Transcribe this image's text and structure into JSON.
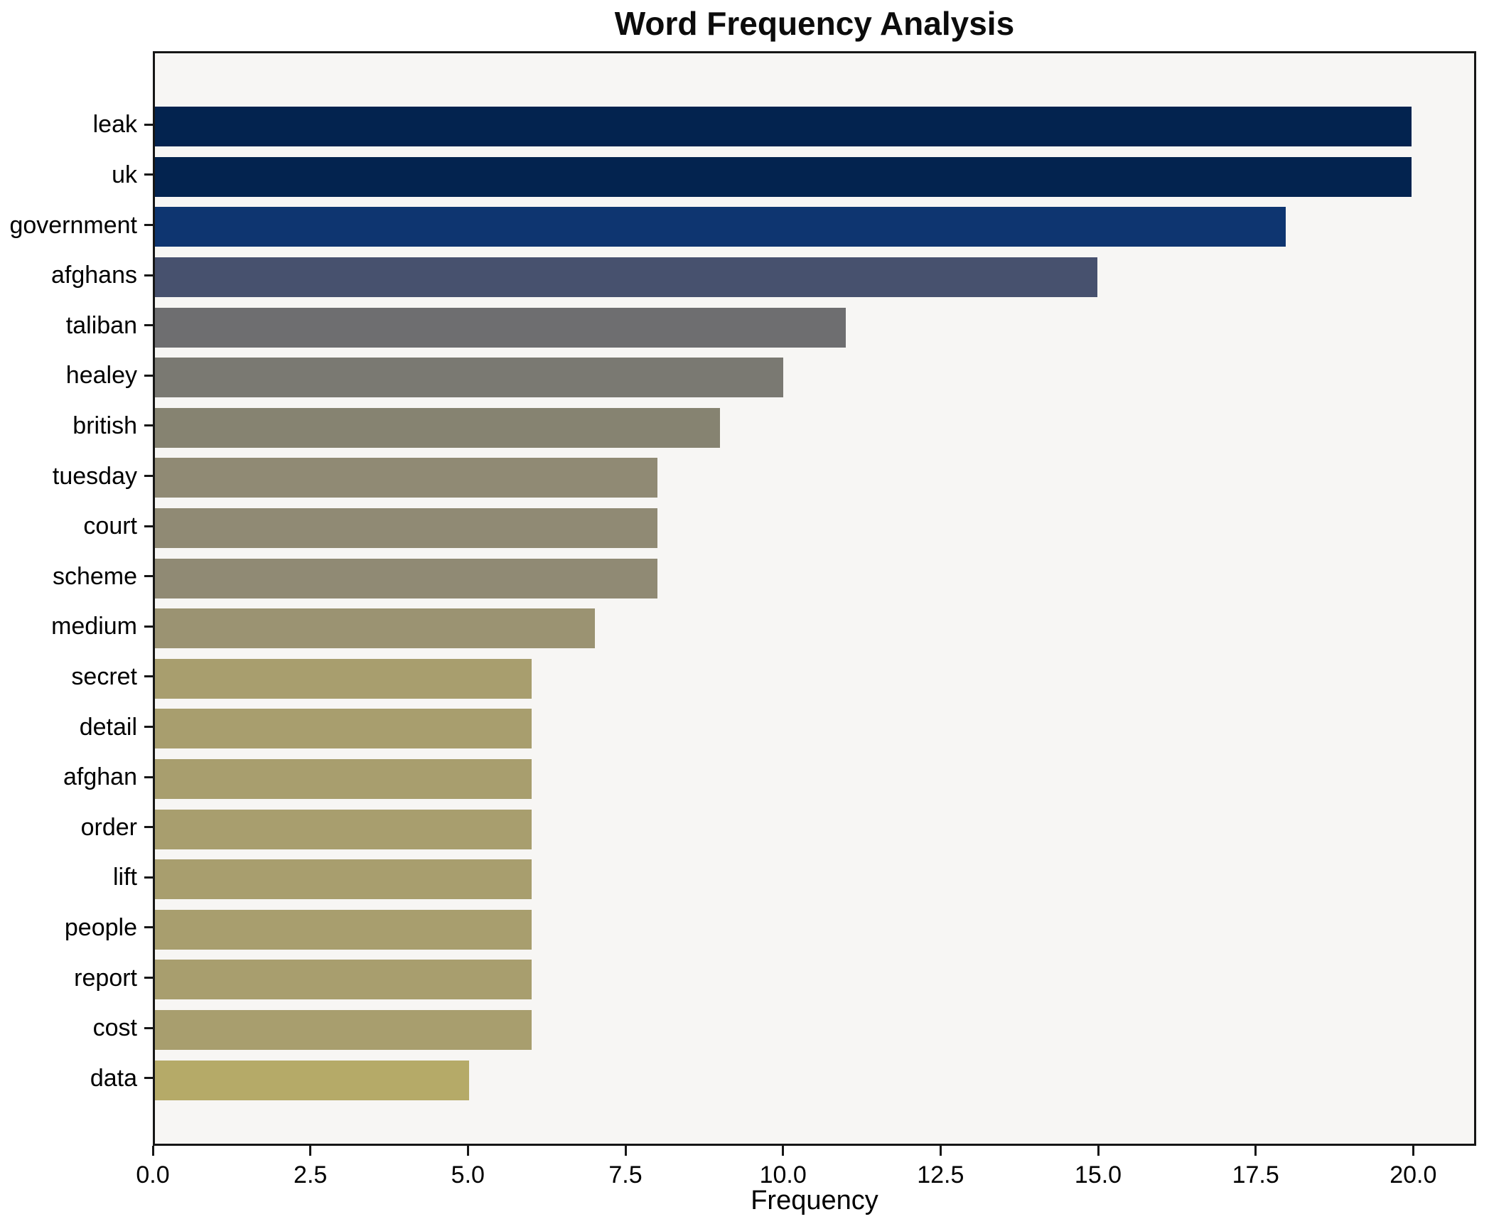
{
  "chart_data": {
    "type": "bar",
    "orientation": "horizontal",
    "title": "Word Frequency Analysis",
    "xlabel": "Frequency",
    "ylabel": "",
    "categories": [
      "leak",
      "uk",
      "government",
      "afghans",
      "taliban",
      "healey",
      "british",
      "tuesday",
      "court",
      "scheme",
      "medium",
      "secret",
      "detail",
      "afghan",
      "order",
      "lift",
      "people",
      "report",
      "cost",
      "data"
    ],
    "values": [
      20,
      20,
      18,
      15,
      11,
      10,
      9,
      8,
      8,
      8,
      7,
      6,
      6,
      6,
      6,
      6,
      6,
      6,
      6,
      5
    ],
    "bar_colors": [
      "#03234f",
      "#03234f",
      "#0e3570",
      "#47516e",
      "#6e6e70",
      "#7a7972",
      "#868371",
      "#908a74",
      "#908a74",
      "#908a74",
      "#9b9372",
      "#a89e6e",
      "#a89e6e",
      "#a89e6e",
      "#a89e6e",
      "#a89e6e",
      "#a89e6e",
      "#a89e6e",
      "#a89e6e",
      "#b5aa68"
    ],
    "xlim": [
      0,
      21
    ],
    "xticks": [
      {
        "value": 0,
        "label": "0.0"
      },
      {
        "value": 2.5,
        "label": "2.5"
      },
      {
        "value": 5,
        "label": "5.0"
      },
      {
        "value": 7.5,
        "label": "7.5"
      },
      {
        "value": 10,
        "label": "10.0"
      },
      {
        "value": 12.5,
        "label": "12.5"
      },
      {
        "value": 15,
        "label": "15.0"
      },
      {
        "value": 17.5,
        "label": "17.5"
      },
      {
        "value": 20,
        "label": "20.0"
      }
    ],
    "grid": false,
    "legend_position": "none",
    "plot_bg_color": "#f7f6f4",
    "spine_color": "#161616",
    "text_color": "#000000"
  }
}
